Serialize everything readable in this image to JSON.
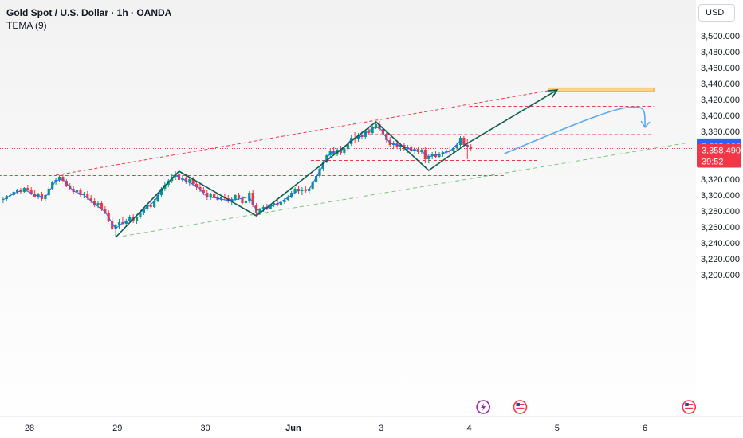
{
  "header": {
    "title": "Gold Spot / U.S. Dollar · 1h · OANDA",
    "indicator": "TEMA (9)",
    "currency": "USD"
  },
  "colors": {
    "up": "#089981",
    "down": "#f23645",
    "tema": "#2962ff",
    "pattern": "#0b5e4f",
    "upper_channel": "#f23645",
    "lower_channel": "#7cc47f",
    "target_zone": "#f5a623",
    "projection": "#5aa9f0",
    "badge_blue": "#2962ff",
    "badge_red": "#f23645"
  },
  "chart_data": {
    "type": "candlestick",
    "symbol": "XAUUSD",
    "timeframe": "1h",
    "y_ticks": [
      "3,500.000",
      "3,480.000",
      "3,460.000",
      "3,440.000",
      "3,420.000",
      "3,400.000",
      "3,380.000",
      "3,360.000",
      "3,340.000",
      "3,320.000",
      "3,300.000",
      "3,280.000",
      "3,260.000",
      "3,240.000",
      "3,220.000",
      "3,200.000"
    ],
    "x_ticks": [
      "28",
      "29",
      "30",
      "Jun",
      "3",
      "4",
      "5",
      "6"
    ],
    "ylim": [
      3200,
      3510
    ],
    "badges": {
      "last_label": "3,362.100",
      "current_label": "3,358.490",
      "countdown": "39:52"
    },
    "candles": [
      [
        27.7,
        3294.0,
        3297.0,
        3290.0,
        3295.0
      ],
      [
        27.74,
        3295.0,
        3300.0,
        3293.0,
        3299.0
      ],
      [
        27.78,
        3299.0,
        3303.0,
        3297.0,
        3300.0
      ],
      [
        27.82,
        3300.0,
        3305.0,
        3299.0,
        3304.0
      ],
      [
        27.86,
        3304.0,
        3308.0,
        3302.0,
        3306.0
      ],
      [
        27.9,
        3306.0,
        3309.0,
        3302.0,
        3304.0
      ],
      [
        27.94,
        3304.0,
        3310.0,
        3303.0,
        3309.0
      ],
      [
        27.98,
        3309.0,
        3313.0,
        3305.0,
        3307.0
      ],
      [
        28.02,
        3307.0,
        3310.0,
        3300.0,
        3302.0
      ],
      [
        28.06,
        3302.0,
        3306.0,
        3297.0,
        3298.0
      ],
      [
        28.1,
        3298.0,
        3303.0,
        3295.0,
        3301.0
      ],
      [
        28.14,
        3301.0,
        3304.0,
        3293.0,
        3295.0
      ],
      [
        28.18,
        3295.0,
        3301.0,
        3292.0,
        3300.0
      ],
      [
        28.22,
        3300.0,
        3310.0,
        3299.0,
        3308.0
      ],
      [
        28.26,
        3308.0,
        3318.0,
        3306.0,
        3316.0
      ],
      [
        28.3,
        3316.0,
        3321.0,
        3313.0,
        3319.0
      ],
      [
        28.34,
        3319.0,
        3325.0,
        3317.0,
        3323.0
      ],
      [
        28.38,
        3323.0,
        3326.0,
        3316.0,
        3318.0
      ],
      [
        28.42,
        3318.0,
        3320.0,
        3310.0,
        3312.0
      ],
      [
        28.46,
        3312.0,
        3315.0,
        3306.0,
        3308.0
      ],
      [
        28.5,
        3308.0,
        3311.0,
        3302.0,
        3304.0
      ],
      [
        28.54,
        3304.0,
        3308.0,
        3300.0,
        3306.0
      ],
      [
        28.58,
        3306.0,
        3309.0,
        3298.0,
        3300.0
      ],
      [
        28.62,
        3300.0,
        3304.0,
        3296.0,
        3302.0
      ],
      [
        28.66,
        3302.0,
        3305.0,
        3294.0,
        3296.0
      ],
      [
        28.7,
        3296.0,
        3300.0,
        3290.0,
        3292.0
      ],
      [
        28.74,
        3292.0,
        3296.0,
        3285.0,
        3288.0
      ],
      [
        28.78,
        3288.0,
        3293.0,
        3284.0,
        3290.0
      ],
      [
        28.82,
        3290.0,
        3292.0,
        3280.0,
        3282.0
      ],
      [
        28.86,
        3282.0,
        3286.0,
        3276.0,
        3278.0
      ],
      [
        28.9,
        3278.0,
        3281.0,
        3266.0,
        3268.0
      ],
      [
        28.94,
        3268.0,
        3272.0,
        3256.0,
        3258.0
      ],
      [
        28.98,
        3258.0,
        3264.0,
        3248.0,
        3262.0
      ],
      [
        29.02,
        3262.0,
        3270.0,
        3258.0,
        3266.0
      ],
      [
        29.06,
        3266.0,
        3272.0,
        3262.0,
        3264.0
      ],
      [
        29.1,
        3264.0,
        3270.0,
        3260.0,
        3268.0
      ],
      [
        29.14,
        3268.0,
        3275.0,
        3266.0,
        3272.0
      ],
      [
        29.18,
        3272.0,
        3276.0,
        3265.0,
        3268.0
      ],
      [
        29.22,
        3268.0,
        3274.0,
        3264.0,
        3272.0
      ],
      [
        29.26,
        3272.0,
        3280.0,
        3270.0,
        3278.0
      ],
      [
        29.3,
        3278.0,
        3285.0,
        3275.0,
        3283.0
      ],
      [
        29.34,
        3283.0,
        3290.0,
        3280.0,
        3287.0
      ],
      [
        29.38,
        3287.0,
        3293.0,
        3283.0,
        3285.0
      ],
      [
        29.42,
        3285.0,
        3295.0,
        3284.0,
        3293.0
      ],
      [
        29.46,
        3293.0,
        3302.0,
        3291.0,
        3300.0
      ],
      [
        29.5,
        3300.0,
        3310.0,
        3298.0,
        3308.0
      ],
      [
        29.54,
        3308.0,
        3316.0,
        3305.0,
        3313.0
      ],
      [
        29.58,
        3313.0,
        3320.0,
        3310.0,
        3318.0
      ],
      [
        29.62,
        3318.0,
        3326.0,
        3315.0,
        3323.0
      ],
      [
        29.66,
        3323.0,
        3330.0,
        3319.0,
        3326.0
      ],
      [
        29.7,
        3326.0,
        3328.0,
        3316.0,
        3319.0
      ],
      [
        29.74,
        3319.0,
        3325.0,
        3316.0,
        3322.0
      ],
      [
        29.78,
        3322.0,
        3326.0,
        3314.0,
        3316.0
      ],
      [
        29.82,
        3316.0,
        3322.0,
        3312.0,
        3320.0
      ],
      [
        29.86,
        3320.0,
        3323.0,
        3312.0,
        3314.0
      ],
      [
        29.9,
        3314.0,
        3318.0,
        3307.0,
        3310.0
      ],
      [
        29.94,
        3310.0,
        3314.0,
        3304.0,
        3306.0
      ],
      [
        29.98,
        3306.0,
        3310.0,
        3300.0,
        3303.0
      ],
      [
        30.02,
        3303.0,
        3306.0,
        3294.0,
        3297.0
      ],
      [
        30.06,
        3297.0,
        3303.0,
        3294.0,
        3301.0
      ],
      [
        30.1,
        3301.0,
        3305.0,
        3296.0,
        3298.0
      ],
      [
        30.14,
        3298.0,
        3302.0,
        3292.0,
        3294.0
      ],
      [
        30.18,
        3294.0,
        3300.0,
        3292.0,
        3298.0
      ],
      [
        30.22,
        3298.0,
        3302.0,
        3294.0,
        3296.0
      ],
      [
        30.26,
        3296.0,
        3300.0,
        3290.0,
        3292.0
      ],
      [
        30.3,
        3292.0,
        3297.0,
        3288.0,
        3295.0
      ],
      [
        30.34,
        3295.0,
        3302.0,
        3293.0,
        3300.0
      ],
      [
        30.38,
        3300.0,
        3303.0,
        3294.0,
        3296.0
      ],
      [
        30.42,
        3296.0,
        3299.0,
        3288.0,
        3290.0
      ],
      [
        30.46,
        3290.0,
        3294.0,
        3286.0,
        3292.0
      ],
      [
        30.5,
        3292.0,
        3305.0,
        3290.0,
        3303.0
      ],
      [
        30.54,
        3303.0,
        3306.0,
        3285.0,
        3287.0
      ],
      [
        30.58,
        3287.0,
        3290.0,
        3274.0,
        3277.0
      ],
      [
        30.62,
        3277.0,
        3284.0,
        3275.0,
        3282.0
      ],
      [
        30.66,
        3282.0,
        3287.0,
        3279.0,
        3285.0
      ],
      [
        30.7,
        3285.0,
        3289.0,
        3281.0,
        3283.0
      ],
      [
        30.74,
        3283.0,
        3289.0,
        3282.0,
        3287.0
      ],
      [
        30.78,
        3287.0,
        3292.0,
        3285.0,
        3290.0
      ],
      [
        30.82,
        3290.0,
        3294.0,
        3286.0,
        3288.0
      ],
      [
        30.86,
        3288.0,
        3293.0,
        3286.0,
        3291.0
      ],
      [
        30.9,
        3291.0,
        3296.0,
        3289.0,
        3294.0
      ],
      [
        30.94,
        3294.0,
        3300.0,
        3292.0,
        3298.0
      ],
      [
        30.98,
        3298.0,
        3305.0,
        3296.0,
        3303.0
      ],
      [
        31.02,
        3303.0,
        3310.0,
        3301.0,
        3308.0
      ],
      [
        31.06,
        3308.0,
        3312.0,
        3302.0,
        3305.0
      ],
      [
        31.1,
        3305.0,
        3310.0,
        3300.0,
        3307.0
      ],
      [
        31.14,
        3307.0,
        3312.0,
        3303.0,
        3305.0
      ],
      [
        31.18,
        3305.0,
        3310.0,
        3302.0,
        3308.0
      ],
      [
        31.22,
        3308.0,
        3318.0,
        3307.0,
        3316.0
      ],
      [
        31.26,
        3316.0,
        3326.0,
        3314.0,
        3324.0
      ],
      [
        31.3,
        3324.0,
        3335.0,
        3322.0,
        3333.0
      ],
      [
        31.34,
        3333.0,
        3344.0,
        3330.0,
        3342.0
      ],
      [
        31.38,
        3342.0,
        3352.0,
        3340.0,
        3350.0
      ],
      [
        31.42,
        3350.0,
        3358.0,
        3346.0,
        3355.0
      ],
      [
        31.46,
        3355.0,
        3360.0,
        3350.0,
        3352.0
      ],
      [
        31.5,
        3352.0,
        3359.0,
        3349.0,
        3357.0
      ],
      [
        31.54,
        3357.0,
        3362.0,
        3350.0,
        3353.0
      ],
      [
        31.58,
        3353.0,
        3360.0,
        3350.0,
        3358.0
      ],
      [
        31.62,
        3358.0,
        3366.0,
        3356.0,
        3364.0
      ],
      [
        31.66,
        3364.0,
        3375.0,
        3362.0,
        3372.0
      ],
      [
        31.7,
        3372.0,
        3379.0,
        3366.0,
        3370.0
      ],
      [
        31.74,
        3370.0,
        3378.0,
        3367.0,
        3376.0
      ],
      [
        31.78,
        3376.0,
        3380.0,
        3370.0,
        3373.0
      ],
      [
        31.82,
        3373.0,
        3382.0,
        3371.0,
        3380.0
      ],
      [
        31.86,
        3380.0,
        3386.0,
        3375.0,
        3378.0
      ],
      [
        31.9,
        3378.0,
        3388.0,
        3376.0,
        3386.0
      ],
      [
        31.94,
        3386.0,
        3392.0,
        3383.0,
        3389.0
      ],
      [
        31.98,
        3389.0,
        3393.0,
        3380.0,
        3383.0
      ],
      [
        32.02,
        3383.0,
        3386.0,
        3374.0,
        3377.0
      ],
      [
        32.06,
        3377.0,
        3381.0,
        3366.0,
        3369.0
      ],
      [
        32.1,
        3369.0,
        3373.0,
        3360.0,
        3363.0
      ],
      [
        32.14,
        3363.0,
        3368.0,
        3358.0,
        3366.0
      ],
      [
        32.18,
        3366.0,
        3369.0,
        3358.0,
        3361.0
      ],
      [
        32.22,
        3361.0,
        3366.0,
        3355.0,
        3363.0
      ],
      [
        32.26,
        3363.0,
        3366.0,
        3356.0,
        3358.0
      ],
      [
        32.3,
        3358.0,
        3363.0,
        3353.0,
        3360.0
      ],
      [
        32.34,
        3360.0,
        3363.0,
        3354.0,
        3356.0
      ],
      [
        32.38,
        3356.0,
        3360.0,
        3351.0,
        3358.0
      ],
      [
        32.42,
        3358.0,
        3361.0,
        3352.0,
        3354.0
      ],
      [
        32.46,
        3354.0,
        3359.0,
        3351.0,
        3357.0
      ],
      [
        32.5,
        3357.0,
        3360.0,
        3340.0,
        3345.0
      ],
      [
        32.54,
        3345.0,
        3352.0,
        3340.0,
        3349.0
      ],
      [
        32.58,
        3349.0,
        3354.0,
        3345.0,
        3351.0
      ],
      [
        32.62,
        3351.0,
        3355.0,
        3346.0,
        3348.0
      ],
      [
        32.66,
        3348.0,
        3354.0,
        3346.0,
        3352.0
      ],
      [
        32.7,
        3352.0,
        3356.0,
        3348.0,
        3354.0
      ],
      [
        32.74,
        3354.0,
        3358.0,
        3351.0,
        3356.0
      ],
      [
        32.78,
        3356.0,
        3360.0,
        3352.0,
        3355.0
      ],
      [
        32.82,
        3355.0,
        3361.0,
        3353.0,
        3359.0
      ],
      [
        32.86,
        3359.0,
        3365.0,
        3357.0,
        3363.0
      ],
      [
        32.9,
        3363.0,
        3374.0,
        3361.0,
        3372.0
      ],
      [
        32.94,
        3372.0,
        3374.0,
        3360.0,
        3363.0
      ],
      [
        32.98,
        3363.0,
        3370.0,
        3345.0,
        3361.0
      ],
      [
        33.02,
        3361.0,
        3364.0,
        3355.0,
        3358.5
      ]
    ],
    "tema": [
      [
        27.7,
        3294.0
      ],
      [
        27.82,
        3302.0
      ],
      [
        27.94,
        3307.0
      ],
      [
        28.06,
        3300.0
      ],
      [
        28.18,
        3297.0
      ],
      [
        28.3,
        3318.0
      ],
      [
        28.38,
        3320.0
      ],
      [
        28.5,
        3305.0
      ],
      [
        28.62,
        3300.0
      ],
      [
        28.74,
        3289.0
      ],
      [
        28.86,
        3279.0
      ],
      [
        28.98,
        3258.0
      ],
      [
        29.06,
        3265.0
      ],
      [
        29.18,
        3270.0
      ],
      [
        29.3,
        3282.0
      ],
      [
        29.42,
        3292.0
      ],
      [
        29.54,
        3312.0
      ],
      [
        29.66,
        3325.0
      ],
      [
        29.78,
        3318.0
      ],
      [
        29.9,
        3311.0
      ],
      [
        30.02,
        3298.0
      ],
      [
        30.14,
        3296.0
      ],
      [
        30.26,
        3293.0
      ],
      [
        30.38,
        3295.0
      ],
      [
        30.5,
        3298.0
      ],
      [
        30.58,
        3281.0
      ],
      [
        30.7,
        3284.0
      ],
      [
        30.82,
        3289.0
      ],
      [
        30.94,
        3297.0
      ],
      [
        31.06,
        3306.0
      ],
      [
        31.18,
        3307.0
      ],
      [
        31.3,
        3330.0
      ],
      [
        31.42,
        3353.0
      ],
      [
        31.54,
        3355.0
      ],
      [
        31.66,
        3370.0
      ],
      [
        31.78,
        3374.0
      ],
      [
        31.9,
        3384.0
      ],
      [
        31.98,
        3385.0
      ],
      [
        32.1,
        3365.0
      ],
      [
        32.22,
        3362.0
      ],
      [
        32.34,
        3357.0
      ],
      [
        32.46,
        3355.0
      ],
      [
        32.54,
        3348.0
      ],
      [
        32.66,
        3351.0
      ],
      [
        32.78,
        3355.0
      ],
      [
        32.9,
        3368.0
      ],
      [
        32.98,
        3362.0
      ],
      [
        33.02,
        3359.0
      ]
    ],
    "pattern_path": [
      [
        28.98,
        3247
      ],
      [
        29.7,
        3330
      ],
      [
        30.58,
        3274
      ],
      [
        31.94,
        3392
      ],
      [
        32.54,
        3331
      ],
      [
        32.98,
        3365
      ]
    ],
    "projection_arrow": [
      [
        32.98,
        3365
      ],
      [
        34.0,
        3432
      ]
    ],
    "upper_channel": [
      [
        28.3,
        3325
      ],
      [
        34.0,
        3433
      ]
    ],
    "lower_channel": [
      [
        28.98,
        3247
      ],
      [
        35.5,
        3366
      ]
    ],
    "horizontal_levels": [
      {
        "price": 3324.5,
        "from": 27.2,
        "to": 33.4
      },
      {
        "price": 3343.5,
        "from": 31.2,
        "to": 33.8
      },
      {
        "price": 3376.0,
        "from": 31.8,
        "to": 35.1
      },
      {
        "price": 3411.5,
        "from": 33.0,
        "to": 35.1
      }
    ],
    "target_zone": {
      "top": 3434.5,
      "bottom": 3430.0,
      "from": 33.9,
      "to": 35.1
    },
    "current_price_line": 3358.5,
    "forecast_curve": [
      [
        33.4,
        3352
      ],
      [
        34.0,
        3380
      ],
      [
        34.6,
        3408
      ],
      [
        34.8,
        3410
      ],
      [
        35.0,
        3385
      ]
    ],
    "event_icons": [
      {
        "day": 33.16,
        "icon": "lightning-icon"
      },
      {
        "day": 33.58,
        "icon": "us-flag-icon"
      },
      {
        "day": 35.5,
        "icon": "us-flag-icon"
      }
    ]
  }
}
